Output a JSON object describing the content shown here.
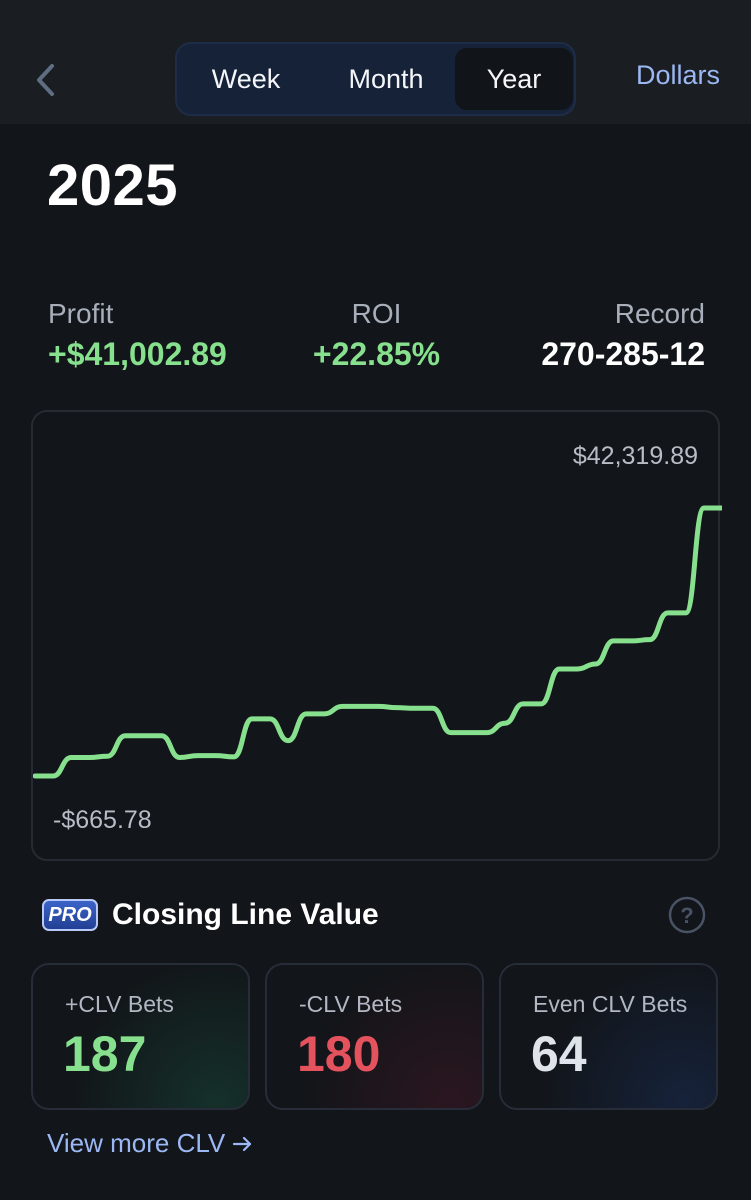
{
  "header": {
    "back_icon": "chevron-left-icon",
    "tabs": [
      {
        "label": "Week",
        "selected": false
      },
      {
        "label": "Month",
        "selected": false
      },
      {
        "label": "Year",
        "selected": true
      }
    ],
    "units_label": "Dollars"
  },
  "period_title": "2025",
  "stats": {
    "profit": {
      "label": "Profit",
      "value": "+$41,002.89"
    },
    "roi": {
      "label": "ROI",
      "value": "+22.85%"
    },
    "record": {
      "label": "Record",
      "value": "270-285-12"
    }
  },
  "chart_data": {
    "type": "line",
    "max_label": "$42,319.89",
    "min_label": "-$665.78",
    "ylim": [
      -665.78,
      42319.89
    ],
    "series": [
      {
        "values": [
          -665.78,
          -665.78,
          2300,
          2300,
          2500,
          5800,
          5800,
          5800,
          2300,
          2600,
          2600,
          2400,
          8500,
          8500,
          5000,
          9300,
          9300,
          10500,
          10500,
          10500,
          10300,
          10200,
          10200,
          6300,
          6300,
          6300,
          7800,
          10900,
          10900,
          16500,
          16500,
          17300,
          21000,
          21000,
          21200,
          25500,
          25500,
          42319.89,
          42319.89
        ]
      }
    ],
    "line_color": "#87e08d"
  },
  "clv": {
    "badge": "PRO",
    "title": "Closing Line Value",
    "help_icon": "question-circle-icon",
    "cards": [
      {
        "label": "+CLV Bets",
        "value": "187",
        "color": "#87e08d"
      },
      {
        "label": "-CLV Bets",
        "value": "180",
        "color": "#e4525e"
      },
      {
        "label": "Even CLV Bets",
        "value": "64",
        "color": "#dfe3ea"
      }
    ],
    "view_more": "View more CLV",
    "view_more_icon": "arrow-right-icon"
  }
}
